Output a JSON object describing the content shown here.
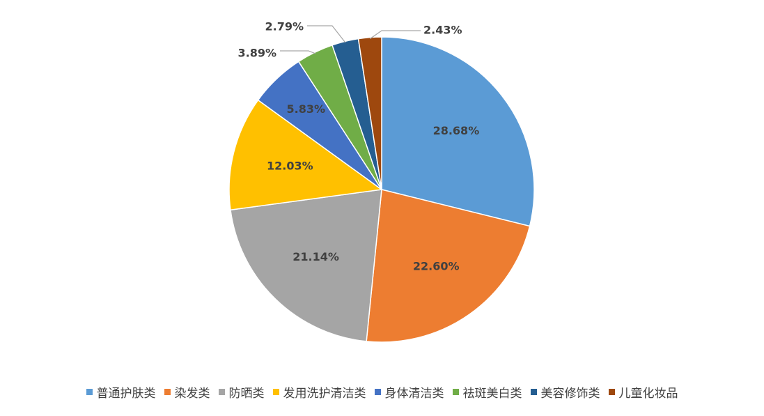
{
  "chart_data": {
    "type": "pie",
    "title": "",
    "start_angle_deg": 0,
    "direction": "clockwise",
    "label_format": "{value}%",
    "legend_position": "bottom",
    "slices": [
      {
        "label": "普通护肤类",
        "value": 28.68,
        "value_text": "28.68%",
        "color": "#5B9BD5",
        "label_placement": "inside"
      },
      {
        "label": "染发类",
        "value": 22.6,
        "value_text": "22.60%",
        "color": "#ED7D31",
        "label_placement": "inside"
      },
      {
        "label": "防晒类",
        "value": 21.14,
        "value_text": "21.14%",
        "color": "#A5A5A5",
        "label_placement": "inside"
      },
      {
        "label": "发用洗护清洁类",
        "value": 12.03,
        "value_text": "12.03%",
        "color": "#FFC000",
        "label_placement": "inside"
      },
      {
        "label": "身体清洁类",
        "value": 5.83,
        "value_text": "5.83%",
        "color": "#4472C4",
        "label_placement": "inside"
      },
      {
        "label": "祛斑美白类",
        "value": 3.89,
        "value_text": "3.89%",
        "color": "#70AD47",
        "label_placement": "outside"
      },
      {
        "label": "美容修饰类",
        "value": 2.79,
        "value_text": "2.79%",
        "color": "#255E91",
        "label_placement": "outside"
      },
      {
        "label": "儿童化妆品",
        "value": 2.43,
        "value_text": "2.43%",
        "color": "#9E480E",
        "label_placement": "outside"
      }
    ]
  }
}
